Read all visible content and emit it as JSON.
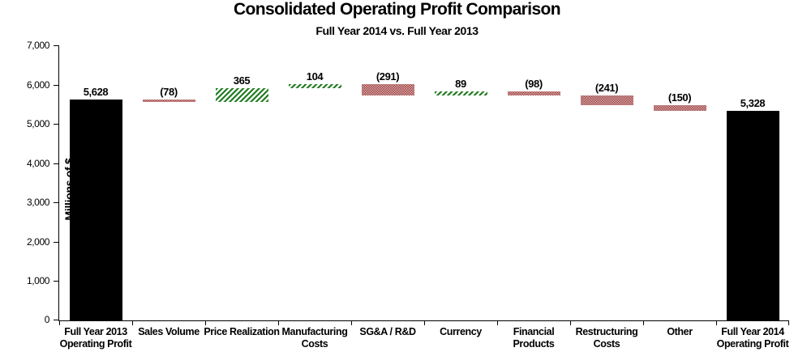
{
  "chart_data": {
    "type": "bar",
    "subtype": "waterfall",
    "title": "Consolidated Operating Profit Comparison",
    "subtitle": "Full Year 2014 vs. Full Year 2013",
    "ylabel": "Millions of $",
    "xlabel": "",
    "ylim": [
      0,
      7000
    ],
    "ytick_step": 1000,
    "grid": false,
    "legend": false,
    "yticks": [
      {
        "value": 0,
        "label": "0"
      },
      {
        "value": 1000,
        "label": "1,000"
      },
      {
        "value": 2000,
        "label": "2,000"
      },
      {
        "value": 3000,
        "label": "3,000"
      },
      {
        "value": 4000,
        "label": "4,000"
      },
      {
        "value": 5000,
        "label": "5,000"
      },
      {
        "value": 6000,
        "label": "6,000"
      },
      {
        "value": 7000,
        "label": "7,000"
      }
    ],
    "columns": [
      {
        "category_lines": [
          "Full Year 2013",
          "Operating Profit"
        ],
        "value": 5628,
        "data_label": "5,628",
        "kind": "total"
      },
      {
        "category_lines": [
          "Sales Volume"
        ],
        "value": -78,
        "data_label": "(78)",
        "kind": "decrease"
      },
      {
        "category_lines": [
          "Price Realization"
        ],
        "value": 365,
        "data_label": "365",
        "kind": "increase"
      },
      {
        "category_lines": [
          "Manufacturing",
          "Costs"
        ],
        "value": 104,
        "data_label": "104",
        "kind": "increase"
      },
      {
        "category_lines": [
          "SG&A / R&D"
        ],
        "value": -291,
        "data_label": "(291)",
        "kind": "decrease"
      },
      {
        "category_lines": [
          "Currency"
        ],
        "value": 89,
        "data_label": "89",
        "kind": "increase"
      },
      {
        "category_lines": [
          "Financial",
          "Products"
        ],
        "value": -98,
        "data_label": "(98)",
        "kind": "decrease"
      },
      {
        "category_lines": [
          "Restructuring",
          "Costs"
        ],
        "value": -241,
        "data_label": "(241)",
        "kind": "decrease"
      },
      {
        "category_lines": [
          "Other"
        ],
        "value": -150,
        "data_label": "(150)",
        "kind": "decrease"
      },
      {
        "category_lines": [
          "Full Year 2014",
          "Operating Profit"
        ],
        "value": 5328,
        "data_label": "5,328",
        "kind": "total"
      }
    ],
    "colors": {
      "total_bar": "#000000",
      "increase_hatch_green": "#1e7b1e",
      "decrease_dots_red": "#9a3434",
      "axis": "#000000",
      "text": "#000000",
      "background": "#ffffff"
    }
  }
}
